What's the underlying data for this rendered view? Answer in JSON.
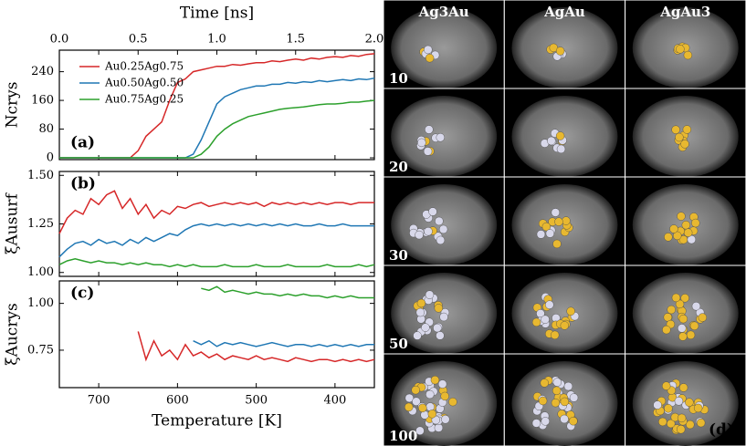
{
  "chart_data": [
    {
      "type": "line",
      "annotation": "(a)",
      "y_label": "Ncrys",
      "x2_label": "Time [ns]",
      "x2lim": [
        0,
        2
      ],
      "x2ticks": [
        {
          "value": 0,
          "label": "0.0"
        },
        0.5,
        {
          "value": 1,
          "label": "1.0"
        },
        1.5,
        {
          "value": 2,
          "label": "2.0"
        }
      ],
      "xlim": [
        750,
        350
      ],
      "xticks": [
        700,
        600,
        500,
        400
      ],
      "ylim": [
        -5,
        300
      ],
      "yticks": [
        0,
        80,
        160,
        240
      ],
      "legend": "upper-left",
      "x": [
        750,
        740,
        730,
        720,
        710,
        700,
        690,
        680,
        670,
        660,
        650,
        640,
        630,
        620,
        610,
        600,
        590,
        580,
        570,
        560,
        550,
        540,
        530,
        520,
        510,
        500,
        490,
        480,
        470,
        460,
        450,
        440,
        430,
        420,
        410,
        400,
        390,
        380,
        370,
        360,
        350
      ],
      "series": [
        {
          "name": "Au0.25Ag0.75",
          "color": "#d62728",
          "values": [
            0,
            0,
            0,
            0,
            0,
            0,
            0,
            0,
            0,
            0,
            20,
            60,
            80,
            100,
            160,
            210,
            220,
            240,
            245,
            250,
            255,
            255,
            260,
            258,
            262,
            265,
            265,
            270,
            268,
            272,
            275,
            272,
            278,
            275,
            280,
            282,
            280,
            285,
            283,
            288,
            290
          ]
        },
        {
          "name": "Au0.50Ag0.50",
          "color": "#1f77b4",
          "values": [
            0,
            0,
            0,
            0,
            0,
            0,
            0,
            0,
            0,
            0,
            0,
            0,
            0,
            0,
            0,
            0,
            0,
            10,
            50,
            100,
            150,
            170,
            180,
            190,
            195,
            200,
            200,
            205,
            205,
            210,
            208,
            212,
            210,
            215,
            212,
            215,
            218,
            215,
            220,
            218,
            222
          ]
        },
        {
          "name": "Au0.75Ag0.25",
          "color": "#2ca02c",
          "values": [
            0,
            0,
            0,
            0,
            0,
            0,
            0,
            0,
            0,
            0,
            0,
            0,
            0,
            0,
            0,
            0,
            0,
            0,
            10,
            30,
            60,
            80,
            95,
            105,
            115,
            120,
            125,
            130,
            135,
            138,
            140,
            142,
            145,
            148,
            150,
            150,
            152,
            155,
            155,
            158,
            160
          ]
        }
      ]
    },
    {
      "type": "line",
      "annotation": "(b)",
      "y_label": "ξAusurf",
      "xlim": [
        750,
        350
      ],
      "xticks": [
        700,
        600,
        500,
        400
      ],
      "ylim": [
        0.98,
        1.52
      ],
      "yticks": [
        {
          "value": 1,
          "label": "1.00"
        },
        1.25,
        {
          "value": 1.5,
          "label": "1.50"
        }
      ],
      "x": [
        750,
        740,
        730,
        720,
        710,
        700,
        690,
        680,
        670,
        660,
        650,
        640,
        630,
        620,
        610,
        600,
        590,
        580,
        570,
        560,
        550,
        540,
        530,
        520,
        510,
        500,
        490,
        480,
        470,
        460,
        450,
        440,
        430,
        420,
        410,
        400,
        390,
        380,
        370,
        360,
        350
      ],
      "series": [
        {
          "color": "#d62728",
          "values": [
            1.2,
            1.28,
            1.32,
            1.3,
            1.38,
            1.35,
            1.4,
            1.42,
            1.33,
            1.38,
            1.3,
            1.35,
            1.28,
            1.32,
            1.3,
            1.34,
            1.33,
            1.35,
            1.36,
            1.34,
            1.35,
            1.36,
            1.35,
            1.36,
            1.35,
            1.36,
            1.34,
            1.36,
            1.35,
            1.36,
            1.35,
            1.36,
            1.35,
            1.36,
            1.35,
            1.36,
            1.36,
            1.35,
            1.36,
            1.36,
            1.36
          ]
        },
        {
          "color": "#1f77b4",
          "values": [
            1.08,
            1.12,
            1.15,
            1.16,
            1.14,
            1.17,
            1.15,
            1.16,
            1.14,
            1.17,
            1.15,
            1.18,
            1.16,
            1.18,
            1.2,
            1.19,
            1.22,
            1.24,
            1.25,
            1.24,
            1.25,
            1.24,
            1.25,
            1.24,
            1.25,
            1.24,
            1.25,
            1.24,
            1.25,
            1.24,
            1.25,
            1.24,
            1.24,
            1.25,
            1.24,
            1.24,
            1.25,
            1.24,
            1.24,
            1.24,
            1.24
          ]
        },
        {
          "color": "#2ca02c",
          "values": [
            1.04,
            1.06,
            1.07,
            1.06,
            1.05,
            1.06,
            1.05,
            1.05,
            1.04,
            1.05,
            1.04,
            1.05,
            1.04,
            1.04,
            1.03,
            1.04,
            1.03,
            1.04,
            1.03,
            1.03,
            1.03,
            1.04,
            1.03,
            1.03,
            1.03,
            1.04,
            1.03,
            1.03,
            1.03,
            1.04,
            1.03,
            1.03,
            1.03,
            1.03,
            1.04,
            1.03,
            1.03,
            1.03,
            1.04,
            1.03,
            1.04
          ]
        }
      ]
    },
    {
      "type": "line",
      "annotation": "(c)",
      "y_label": "ξAucrys",
      "x_label": "Temperature [K]",
      "xlim": [
        750,
        350
      ],
      "xticks": [
        700,
        600,
        500,
        400
      ],
      "ylim": [
        0.55,
        1.12
      ],
      "yticks": [
        0.75,
        {
          "value": 1,
          "label": "1.00"
        }
      ],
      "x": [
        750,
        740,
        730,
        720,
        710,
        700,
        690,
        680,
        670,
        660,
        650,
        640,
        630,
        620,
        610,
        600,
        590,
        580,
        570,
        560,
        550,
        540,
        530,
        520,
        510,
        500,
        490,
        480,
        470,
        460,
        450,
        440,
        430,
        420,
        410,
        400,
        390,
        380,
        370,
        360,
        350
      ],
      "series": [
        {
          "color": "#d62728",
          "values": [
            null,
            null,
            null,
            null,
            null,
            null,
            null,
            null,
            null,
            null,
            0.85,
            0.7,
            0.8,
            0.72,
            0.75,
            0.7,
            0.78,
            0.72,
            0.74,
            0.71,
            0.73,
            0.7,
            0.72,
            0.71,
            0.7,
            0.72,
            0.7,
            0.71,
            0.7,
            0.69,
            0.71,
            0.7,
            0.69,
            0.7,
            0.7,
            0.69,
            0.7,
            0.69,
            0.7,
            0.69,
            0.7
          ]
        },
        {
          "color": "#1f77b4",
          "values": [
            null,
            null,
            null,
            null,
            null,
            null,
            null,
            null,
            null,
            null,
            null,
            null,
            null,
            null,
            null,
            null,
            null,
            0.8,
            0.78,
            0.8,
            0.77,
            0.79,
            0.78,
            0.79,
            0.78,
            0.77,
            0.78,
            0.79,
            0.78,
            0.77,
            0.78,
            0.78,
            0.77,
            0.78,
            0.77,
            0.78,
            0.77,
            0.78,
            0.77,
            0.78,
            0.78
          ]
        },
        {
          "color": "#2ca02c",
          "values": [
            null,
            null,
            null,
            null,
            null,
            null,
            null,
            null,
            null,
            null,
            null,
            null,
            null,
            null,
            null,
            null,
            null,
            null,
            1.08,
            1.07,
            1.09,
            1.06,
            1.07,
            1.06,
            1.05,
            1.06,
            1.05,
            1.05,
            1.04,
            1.05,
            1.04,
            1.05,
            1.04,
            1.04,
            1.03,
            1.04,
            1.03,
            1.04,
            1.03,
            1.03,
            1.03
          ]
        }
      ]
    }
  ],
  "panel_d": {
    "columns": [
      "Ag3Au",
      "AgAu",
      "AgAu3"
    ],
    "rows": [
      "10",
      "20",
      "30",
      "50",
      "100"
    ],
    "label": "(d)"
  }
}
